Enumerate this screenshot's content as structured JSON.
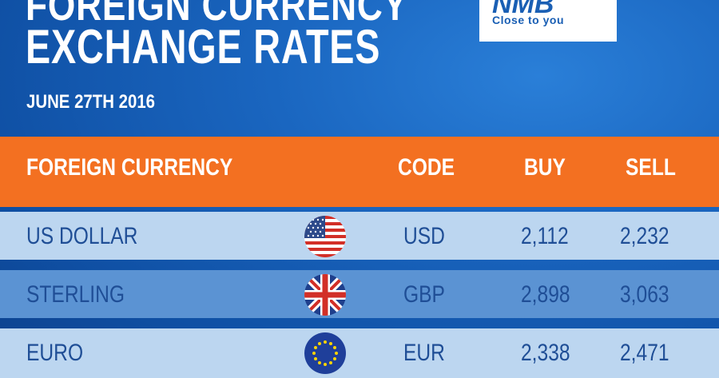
{
  "header": {
    "title_top": "FOREIGN CURRENCY",
    "title_main": "EXCHANGE RATES",
    "date": "JUNE 27TH 2016"
  },
  "logo": {
    "mark": "NMB",
    "tagline": "Close to you"
  },
  "table": {
    "columns": {
      "currency": "FOREIGN CURRENCY",
      "code": "CODE",
      "buy": "BUY",
      "sell": "SELL"
    },
    "rows": [
      {
        "currency": "US DOLLAR",
        "flag": "us-flag-icon",
        "code": "USD",
        "buy": "2,112",
        "sell": "2,232"
      },
      {
        "currency": "STERLING",
        "flag": "uk-flag-icon",
        "code": "GBP",
        "buy": "2,898",
        "sell": "3,063"
      },
      {
        "currency": "EURO",
        "flag": "eu-flag-icon",
        "code": "EUR",
        "buy": "2,338",
        "sell": "2,471"
      }
    ]
  },
  "colors": {
    "background": "#1565c0",
    "header_bar": "#f37021",
    "row_light": "#bcd6f0",
    "row_dark": "#5b93d3",
    "row_text": "#1f4e96"
  }
}
